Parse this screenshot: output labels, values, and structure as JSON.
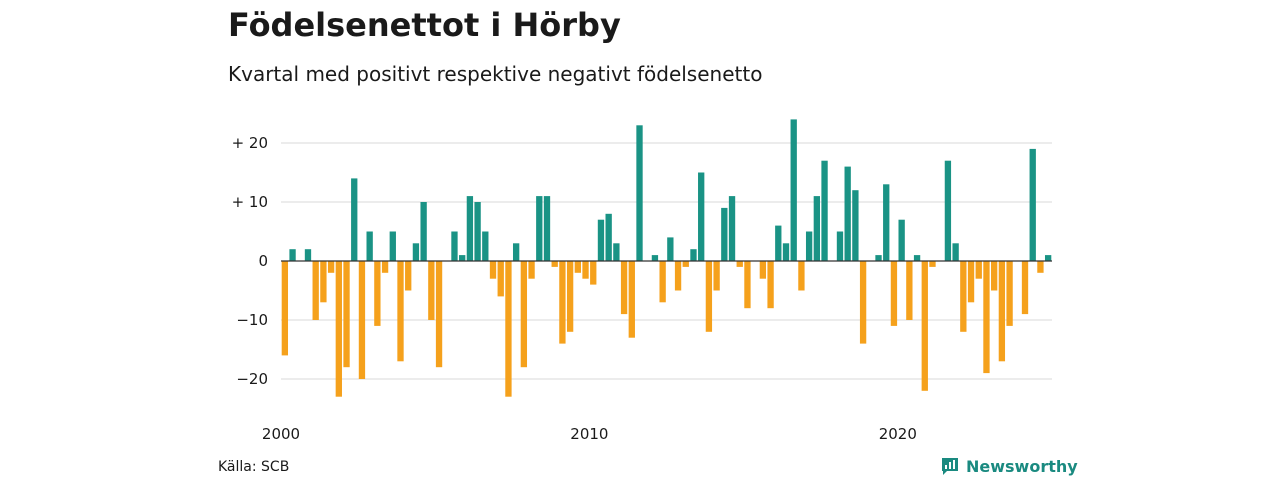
{
  "header": {
    "title": "Födelsenettot i Hörby",
    "subtitle": "Kvartal med positivt respektive negativt födelsenetto"
  },
  "footer": {
    "source": "Källa: SCB",
    "brand": "Newsworthy",
    "brand_icon": "bar-chart-speech-bubble-icon"
  },
  "colors": {
    "positive": "#1a9385",
    "negative": "#f5a11c",
    "grid": "#d9d9d9",
    "zero_line": "#333333",
    "brand": "#1a8a80"
  },
  "chart_data": {
    "type": "bar",
    "title": "Födelsenettot i Hörby",
    "subtitle": "Kvartal med positivt respektive negativt födelsenetto",
    "start": "2000",
    "interval": "quarter",
    "values": [
      -16,
      2,
      0,
      2,
      -10,
      -7,
      -2,
      -23,
      -18,
      14,
      -20,
      5,
      -11,
      -2,
      5,
      -17,
      -5,
      3,
      10,
      -10,
      -18,
      0,
      5,
      1,
      11,
      10,
      5,
      -3,
      -6,
      -23,
      3,
      -18,
      -3,
      11,
      11,
      -1,
      -14,
      -12,
      -2,
      -3,
      -4,
      7,
      8,
      3,
      -9,
      -13,
      23,
      0,
      1,
      -7,
      4,
      -5,
      -1,
      2,
      15,
      -12,
      -5,
      9,
      11,
      -1,
      -8,
      0,
      -3,
      -8,
      6,
      3,
      24,
      -5,
      5,
      11,
      17,
      0,
      5,
      16,
      12,
      -14,
      0,
      1,
      13,
      -11,
      7,
      -10,
      1,
      -22,
      -1,
      0,
      17,
      3,
      -12,
      -7,
      -3,
      -19,
      -5,
      -17,
      -11,
      0,
      -9,
      19,
      -2,
      1
    ],
    "y_ticks": [
      {
        "value": 20,
        "label": "+ 20"
      },
      {
        "value": 10,
        "label": "+ 10"
      },
      {
        "value": 0,
        "label": "0"
      },
      {
        "value": -10,
        "label": "−10"
      },
      {
        "value": -20,
        "label": "−20"
      }
    ],
    "x_ticks": [
      {
        "index": 0,
        "label": "2000"
      },
      {
        "index": 40,
        "label": "2010"
      },
      {
        "index": 80,
        "label": "2020"
      }
    ],
    "ylim": [
      -25,
      25
    ],
    "grid": true,
    "legend": "none"
  }
}
